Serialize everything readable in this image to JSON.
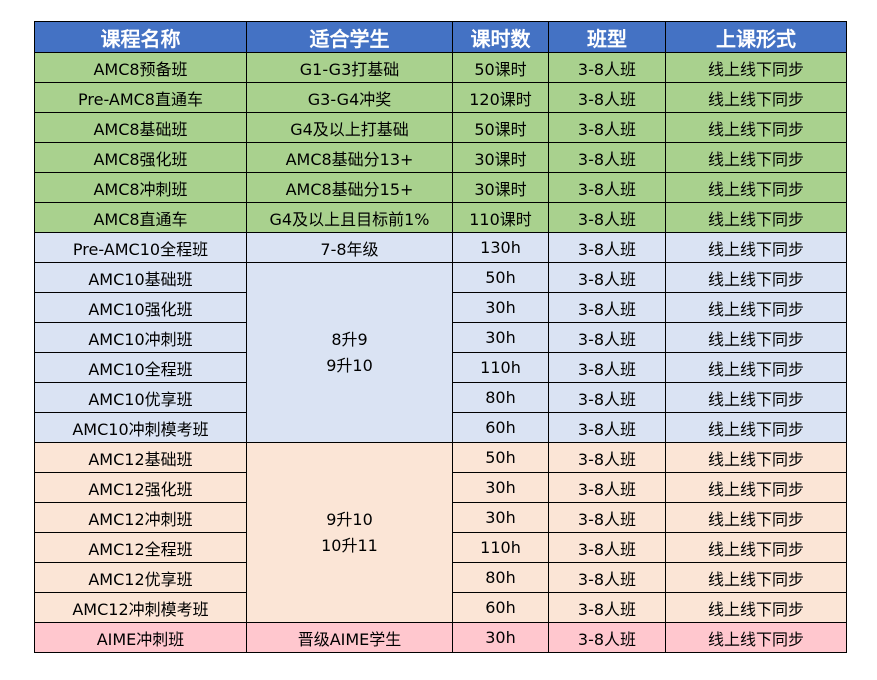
{
  "headers": [
    "课程名称",
    "适合学生",
    "课时数",
    "班型",
    "上课形式"
  ],
  "colors": {
    "header": "#4472c4",
    "green": "#a9d18e",
    "blue": "#dae3f3",
    "orange": "#fbe5d6",
    "pink": "#ffc7ce"
  },
  "amc8": [
    {
      "course": "AMC8预备班",
      "students": "G1-G3打基础",
      "hours": "50课时",
      "size": "3-8人班",
      "format": "线上线下同步"
    },
    {
      "course": "Pre-AMC8直通车",
      "students": "G3-G4冲奖",
      "hours": "120课时",
      "size": "3-8人班",
      "format": "线上线下同步"
    },
    {
      "course": "AMC8基础班",
      "students": "G4及以上打基础",
      "hours": "50课时",
      "size": "3-8人班",
      "format": "线上线下同步"
    },
    {
      "course": "AMC8强化班",
      "students": "AMC8基础分13+",
      "hours": "30课时",
      "size": "3-8人班",
      "format": "线上线下同步"
    },
    {
      "course": "AMC8冲刺班",
      "students": "AMC8基础分15+",
      "hours": "30课时",
      "size": "3-8人班",
      "format": "线上线下同步"
    },
    {
      "course": "AMC8直通车",
      "students": "G4及以上且目标前1%",
      "hours": "110课时",
      "size": "3-8人班",
      "format": "线上线下同步"
    }
  ],
  "pre_amc10": {
    "course": "Pre-AMC10全程班",
    "students": "7-8年级",
    "hours": "130h",
    "size": "3-8人班",
    "format": "线上线下同步"
  },
  "amc10": {
    "students": [
      "8升9",
      "9升10"
    ],
    "rows": [
      {
        "course": "AMC10基础班",
        "hours": "50h",
        "size": "3-8人班",
        "format": "线上线下同步"
      },
      {
        "course": "AMC10强化班",
        "hours": "30h",
        "size": "3-8人班",
        "format": "线上线下同步"
      },
      {
        "course": "AMC10冲刺班",
        "hours": "30h",
        "size": "3-8人班",
        "format": "线上线下同步"
      },
      {
        "course": "AMC10全程班",
        "hours": "110h",
        "size": "3-8人班",
        "format": "线上线下同步"
      },
      {
        "course": "AMC10优享班",
        "hours": "80h",
        "size": "3-8人班",
        "format": "线上线下同步"
      },
      {
        "course": "AMC10冲刺模考班",
        "hours": "60h",
        "size": "3-8人班",
        "format": "线上线下同步"
      }
    ]
  },
  "amc12": {
    "students": [
      "9升10",
      "10升11"
    ],
    "rows": [
      {
        "course": "AMC12基础班",
        "hours": "50h",
        "size": "3-8人班",
        "format": "线上线下同步"
      },
      {
        "course": "AMC12强化班",
        "hours": "30h",
        "size": "3-8人班",
        "format": "线上线下同步"
      },
      {
        "course": "AMC12冲刺班",
        "hours": "30h",
        "size": "3-8人班",
        "format": "线上线下同步"
      },
      {
        "course": "AMC12全程班",
        "hours": "110h",
        "size": "3-8人班",
        "format": "线上线下同步"
      },
      {
        "course": "AMC12优享班",
        "hours": "80h",
        "size": "3-8人班",
        "format": "线上线下同步"
      },
      {
        "course": "AMC12冲刺模考班",
        "hours": "60h",
        "size": "3-8人班",
        "format": "线上线下同步"
      }
    ]
  },
  "aime": {
    "course": "AIME冲刺班",
    "students": "晋级AIME学生",
    "hours": "30h",
    "size": "3-8人班",
    "format": "线上线下同步"
  }
}
